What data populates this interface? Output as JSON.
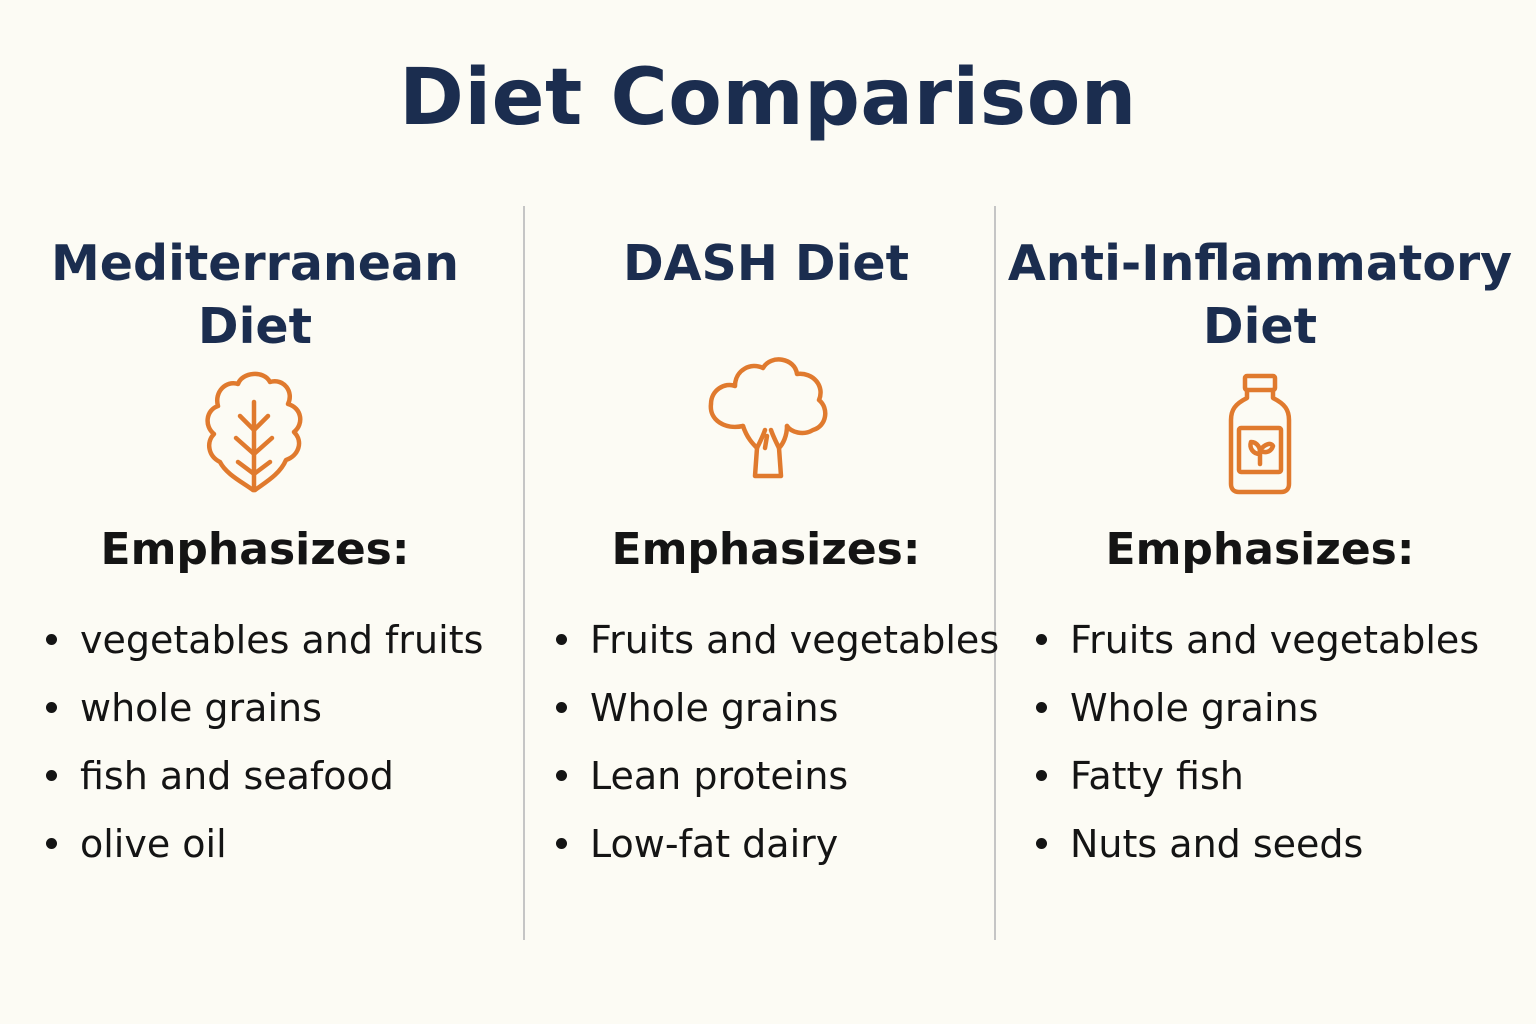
{
  "title": "Diet Comparison",
  "accent_color": "#e07a2e",
  "heading_color": "#1b2d4f",
  "columns": [
    {
      "title_lines": [
        "Mediterranean",
        "Diet"
      ],
      "icon": "leaf-icon",
      "emphasizes_label": "Emphasizes:",
      "items": [
        "vegetables and fruits",
        "whole grains",
        "fish and seafood",
        "olive oil"
      ]
    },
    {
      "title_lines": [
        "DASH Diet"
      ],
      "icon": "broccoli-icon",
      "emphasizes_label": "Emphasizes:",
      "items": [
        "Fruits and vegetables",
        "Whole grains",
        "Lean proteins",
        "Low-fat dairy"
      ]
    },
    {
      "title_lines": [
        "Anti-Inflammatory",
        "Diet"
      ],
      "icon": "bottle-icon",
      "emphasizes_label": "Emphasizes:",
      "items": [
        "Fruits and vegetables",
        "Whole grains",
        "Fatty fish",
        "Nuts and seeds"
      ]
    }
  ]
}
